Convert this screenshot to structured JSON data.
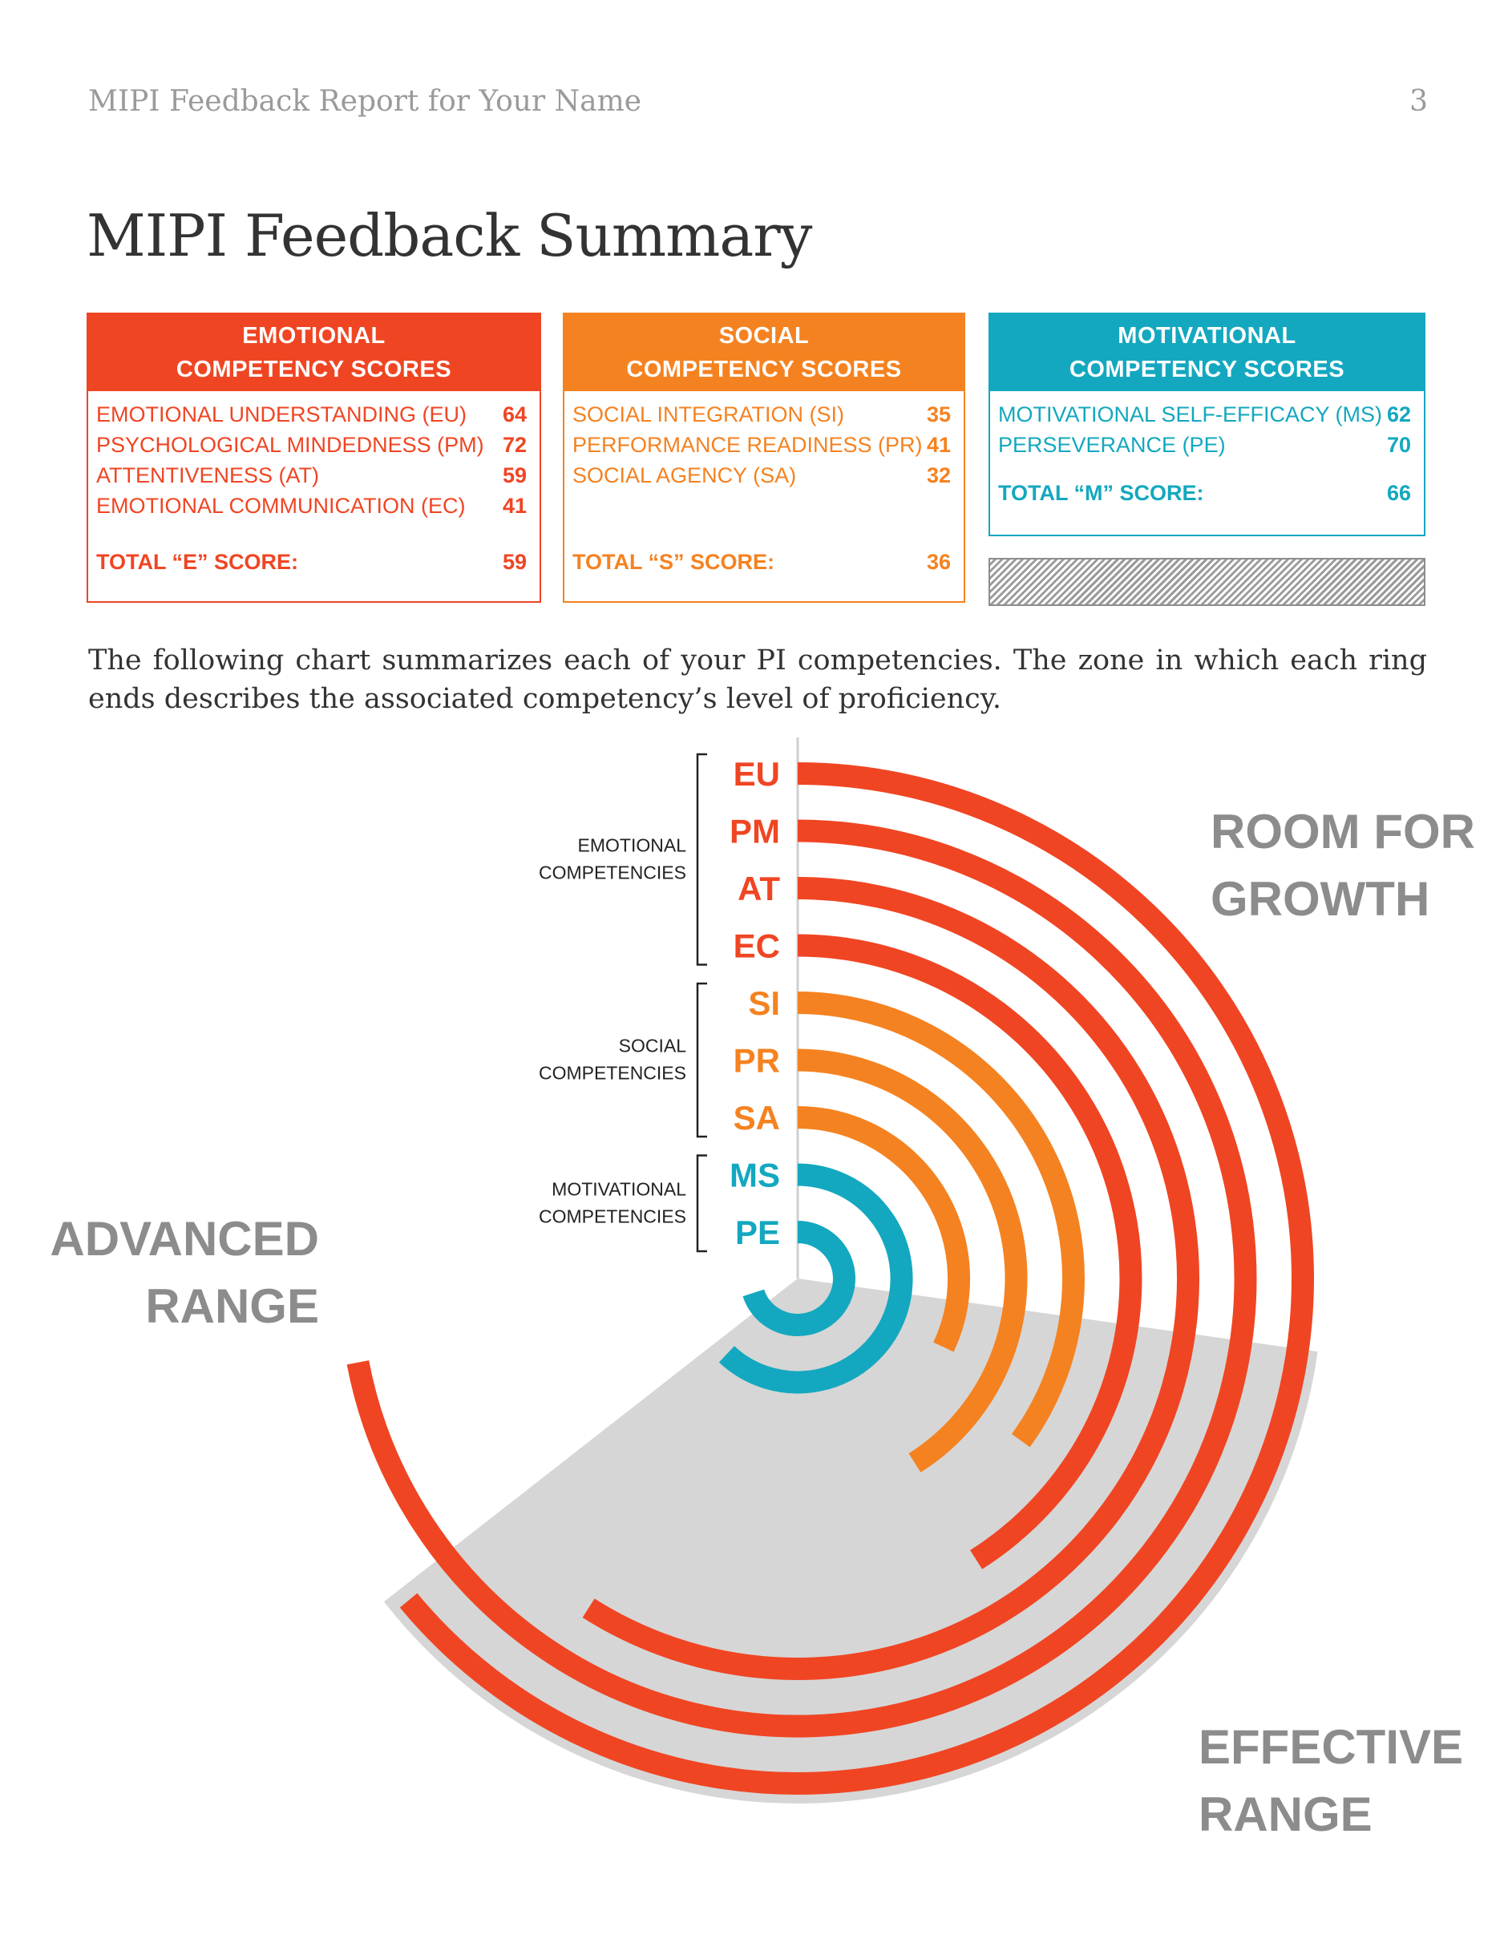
{
  "header": {
    "report_title": "MIPI Feedback Report for Your Name",
    "page_number": "3"
  },
  "page_title": "MIPI Feedback Summary",
  "colors": {
    "emotional": "#f04523",
    "social": "#f58220",
    "motivational": "#13a8bf",
    "zone_gray": "#d6d6d6",
    "label_gray": "#8c8c8c"
  },
  "boxes": {
    "emotional": {
      "title_line1": "EMOTIONAL",
      "title_line2": "COMPETENCY SCORES",
      "rows": [
        {
          "label": "EMOTIONAL UNDERSTANDING (EU)",
          "value": "64"
        },
        {
          "label": "PSYCHOLOGICAL MINDEDNESS (PM)",
          "value": "72"
        },
        {
          "label": "ATTENTIVENESS (AT)",
          "value": "59"
        },
        {
          "label": "EMOTIONAL COMMUNICATION (EC)",
          "value": "41"
        }
      ],
      "total_label": "TOTAL “E” SCORE:",
      "total_value": "59"
    },
    "social": {
      "title_line1": "SOCIAL",
      "title_line2": "COMPETENCY SCORES",
      "rows": [
        {
          "label": "SOCIAL INTEGRATION (SI)",
          "value": "35"
        },
        {
          "label": "PERFORMANCE READINESS (PR)",
          "value": "41"
        },
        {
          "label": "SOCIAL AGENCY (SA)",
          "value": "32"
        }
      ],
      "total_label": "TOTAL “S” SCORE:",
      "total_value": "36"
    },
    "motivational": {
      "title_line1": "MOTIVATIONAL",
      "title_line2": "COMPETENCY SCORES",
      "rows": [
        {
          "label": "MOTIVATIONAL SELF-EFFICACY (MS)",
          "value": "62"
        },
        {
          "label": "PERSEVERANCE (PE)",
          "value": "70"
        }
      ],
      "total_label": "TOTAL “M” SCORE:",
      "total_value": "66"
    }
  },
  "intro_text": "The following chart summarizes each of your PI competencies. The zone in which each ring ends describes the associated competency’s level of proficiency.",
  "chart_data": {
    "type": "radial-bar",
    "zones": {
      "room_for_growth": [
        "ROOM FOR",
        "GROWTH"
      ],
      "effective_range": [
        "EFFECTIVE",
        "RANGE"
      ],
      "advanced_range": [
        "ADVANCED",
        "RANGE"
      ]
    },
    "groups": [
      {
        "name_lines": [
          "EMOTIONAL",
          "COMPETENCIES"
        ],
        "members": [
          "EU",
          "PM",
          "AT",
          "EC"
        ]
      },
      {
        "name_lines": [
          "SOCIAL",
          "COMPETENCIES"
        ],
        "members": [
          "SI",
          "PR",
          "SA"
        ]
      },
      {
        "name_lines": [
          "MOTIVATIONAL",
          "COMPETENCIES"
        ],
        "members": [
          "MS",
          "PE"
        ]
      }
    ],
    "rings": [
      {
        "label": "EU",
        "group": "emotional",
        "value": 64
      },
      {
        "label": "PM",
        "group": "emotional",
        "value": 72
      },
      {
        "label": "AT",
        "group": "emotional",
        "value": 59
      },
      {
        "label": "EC",
        "group": "emotional",
        "value": 41
      },
      {
        "label": "SI",
        "group": "social",
        "value": 35
      },
      {
        "label": "PR",
        "group": "social",
        "value": 41
      },
      {
        "label": "SA",
        "group": "social",
        "value": 32
      },
      {
        "label": "MS",
        "group": "motivational",
        "value": 62
      },
      {
        "label": "PE",
        "group": "motivational",
        "value": 70
      }
    ]
  }
}
